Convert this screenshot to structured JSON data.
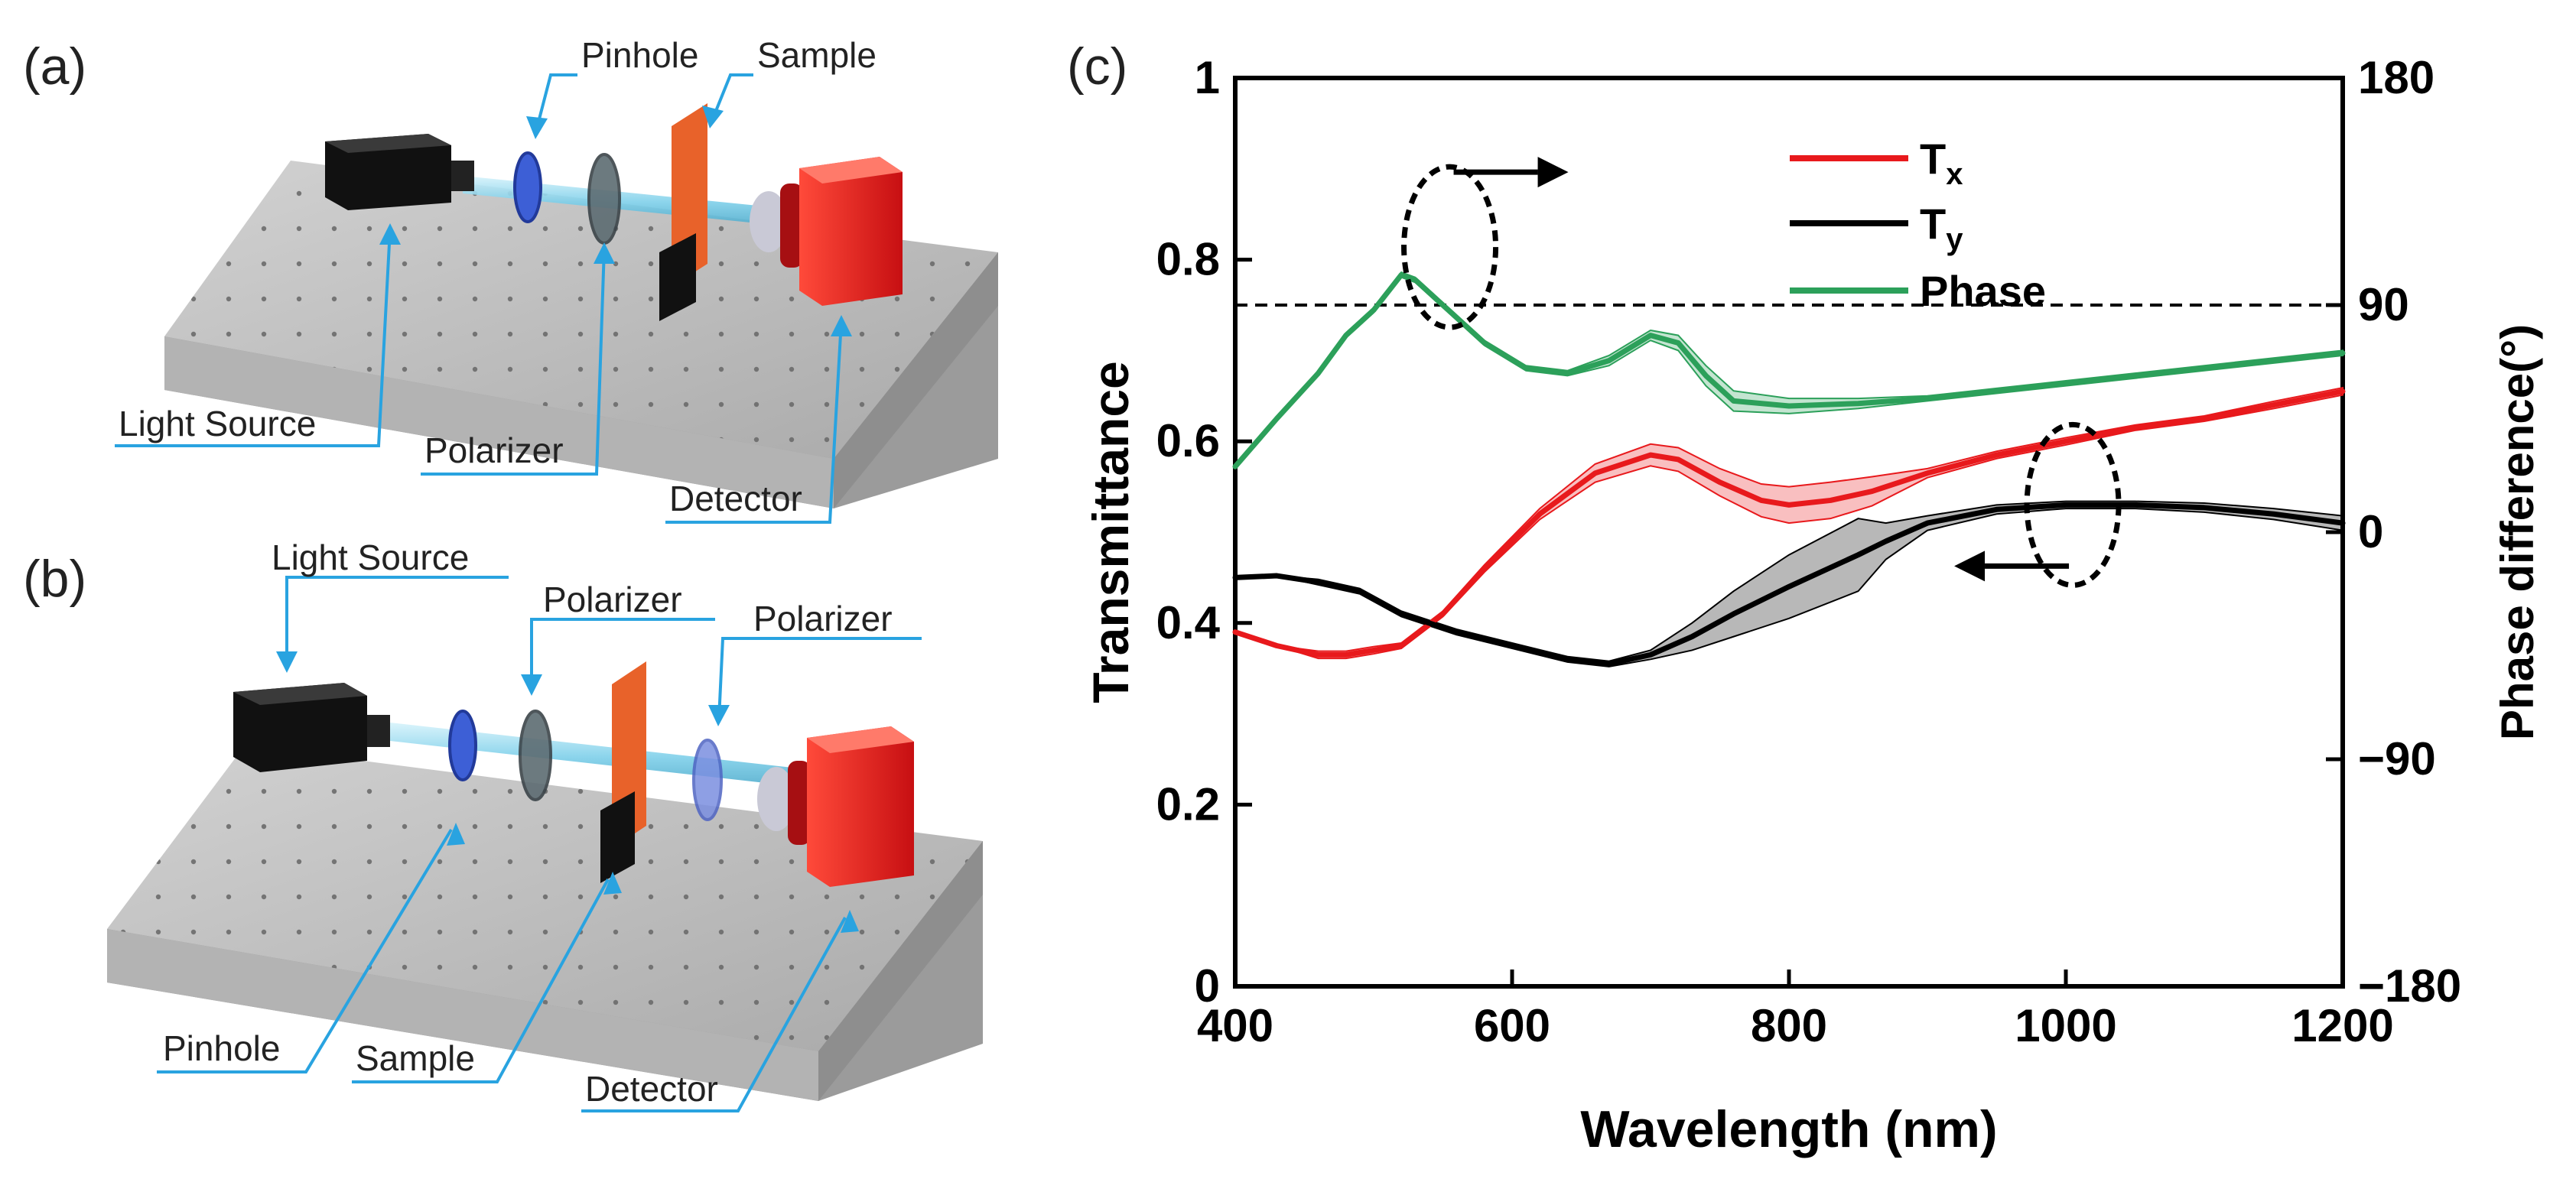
{
  "panel_a": {
    "label": "(a)",
    "callouts": {
      "pinhole": "Pinhole",
      "sample": "Sample",
      "light_source": "Light Source",
      "polarizer": "Polarizer",
      "detector": "Detector"
    }
  },
  "panel_b": {
    "label": "(b)",
    "callouts": {
      "light_source": "Light Source",
      "polarizer_1": "Polarizer",
      "polarizer_2": "Polarizer",
      "pinhole": "Pinhole",
      "sample": "Sample",
      "detector": "Detector"
    }
  },
  "colors": {
    "tx": "#e8191c",
    "ty": "#000000",
    "phase": "#2ca05a",
    "callout": "#29a3e0",
    "bench": "#bdbdbd",
    "bench_dark": "#9a9a9a",
    "source": "#1b1b1b",
    "sample": "#e8622a",
    "detector": "#e41b1b",
    "lens": "#3d5fd6",
    "polarizer": "#5a6a72",
    "beam": "#8fd6ec"
  },
  "chart_data": {
    "type": "line",
    "panel_label": "(c)",
    "title": "",
    "xlabel": "Wavelength (nm)",
    "ylabel": "Transmittance",
    "y2label": "Phase difference(°)",
    "xlim": [
      400,
      1200
    ],
    "ylim": [
      0,
      1
    ],
    "y2lim": [
      -180,
      180
    ],
    "xticks": [
      400,
      600,
      800,
      1000,
      1200
    ],
    "xtick_labels": [
      "400",
      "600",
      "800",
      "1000",
      "1200"
    ],
    "yticks": [
      0,
      0.2,
      0.4,
      0.6,
      0.8,
      1
    ],
    "ytick_labels": [
      "0",
      "0.2",
      "0.4",
      "0.6",
      "0.8",
      "1"
    ],
    "y2ticks": [
      -180,
      -90,
      0,
      90,
      180
    ],
    "y2tick_labels": [
      "−180",
      "−90",
      "0",
      "90",
      "180"
    ],
    "grid": false,
    "legend_position": "top",
    "reference_line": {
      "axis": "y2",
      "value": 90,
      "style": "dashed"
    },
    "series": [
      {
        "name": "Tx",
        "legend_main": "T",
        "legend_sub": "x",
        "axis": "y",
        "x": [
          400,
          430,
          460,
          480,
          500,
          520,
          550,
          580,
          620,
          660,
          700,
          720,
          750,
          780,
          800,
          830,
          860,
          900,
          950,
          1000,
          1050,
          1100,
          1150,
          1200
        ],
        "y": [
          0.39,
          0.375,
          0.365,
          0.365,
          0.37,
          0.375,
          0.41,
          0.46,
          0.52,
          0.565,
          0.585,
          0.58,
          0.555,
          0.535,
          0.53,
          0.535,
          0.545,
          0.565,
          0.585,
          0.6,
          0.615,
          0.625,
          0.64,
          0.655
        ],
        "band_half_width": [
          0,
          0,
          0.004,
          0.004,
          0.004,
          0.003,
          0.003,
          0.004,
          0.006,
          0.01,
          0.012,
          0.013,
          0.015,
          0.018,
          0.02,
          0.02,
          0.016,
          0.005,
          0.004,
          0.004,
          0.003,
          0.003,
          0.004,
          0.004
        ]
      },
      {
        "name": "Ty",
        "legend_main": "T",
        "legend_sub": "y",
        "axis": "y",
        "x": [
          400,
          430,
          460,
          490,
          520,
          560,
          600,
          640,
          670,
          700,
          730,
          760,
          800,
          850,
          870,
          900,
          950,
          1000,
          1050,
          1100,
          1150,
          1200
        ],
        "y": [
          0.45,
          0.452,
          0.445,
          0.435,
          0.41,
          0.39,
          0.375,
          0.36,
          0.355,
          0.365,
          0.385,
          0.41,
          0.44,
          0.475,
          0.49,
          0.51,
          0.525,
          0.53,
          0.53,
          0.527,
          0.52,
          0.51
        ],
        "band_half_width": [
          0,
          0,
          0.003,
          0.003,
          0.003,
          0.003,
          0.003,
          0.003,
          0.003,
          0.005,
          0.015,
          0.025,
          0.035,
          0.04,
          0.02,
          0.008,
          0.005,
          0.004,
          0.004,
          0.005,
          0.006,
          0.008
        ]
      },
      {
        "name": "Phase",
        "legend_main": "Phase",
        "legend_sub": "",
        "axis": "y2",
        "x": [
          400,
          430,
          460,
          480,
          500,
          510,
          520,
          530,
          550,
          580,
          610,
          640,
          670,
          700,
          720,
          740,
          760,
          800,
          850,
          900,
          950,
          1000,
          1050,
          1100,
          1150,
          1200
        ],
        "y": [
          26,
          45,
          63,
          78,
          88,
          95,
          102,
          100,
          90,
          75,
          65,
          63,
          68,
          78,
          75,
          62,
          52,
          50,
          51,
          53,
          56,
          59,
          62,
          65,
          68,
          71
        ],
        "band_half_width": [
          0,
          0,
          0,
          1,
          1,
          1,
          1,
          1,
          1,
          1,
          1,
          1,
          2,
          2,
          3,
          4,
          4,
          3,
          2,
          1,
          1,
          1,
          1,
          1,
          1,
          1
        ]
      }
    ],
    "annotations": [
      {
        "type": "ellipse",
        "x": 555,
        "y2": 113,
        "arrow_direction": "right",
        "refers_to": "y2"
      },
      {
        "type": "ellipse",
        "x": 1005,
        "y": 0.53,
        "arrow_direction": "left",
        "refers_to": "y"
      }
    ]
  }
}
